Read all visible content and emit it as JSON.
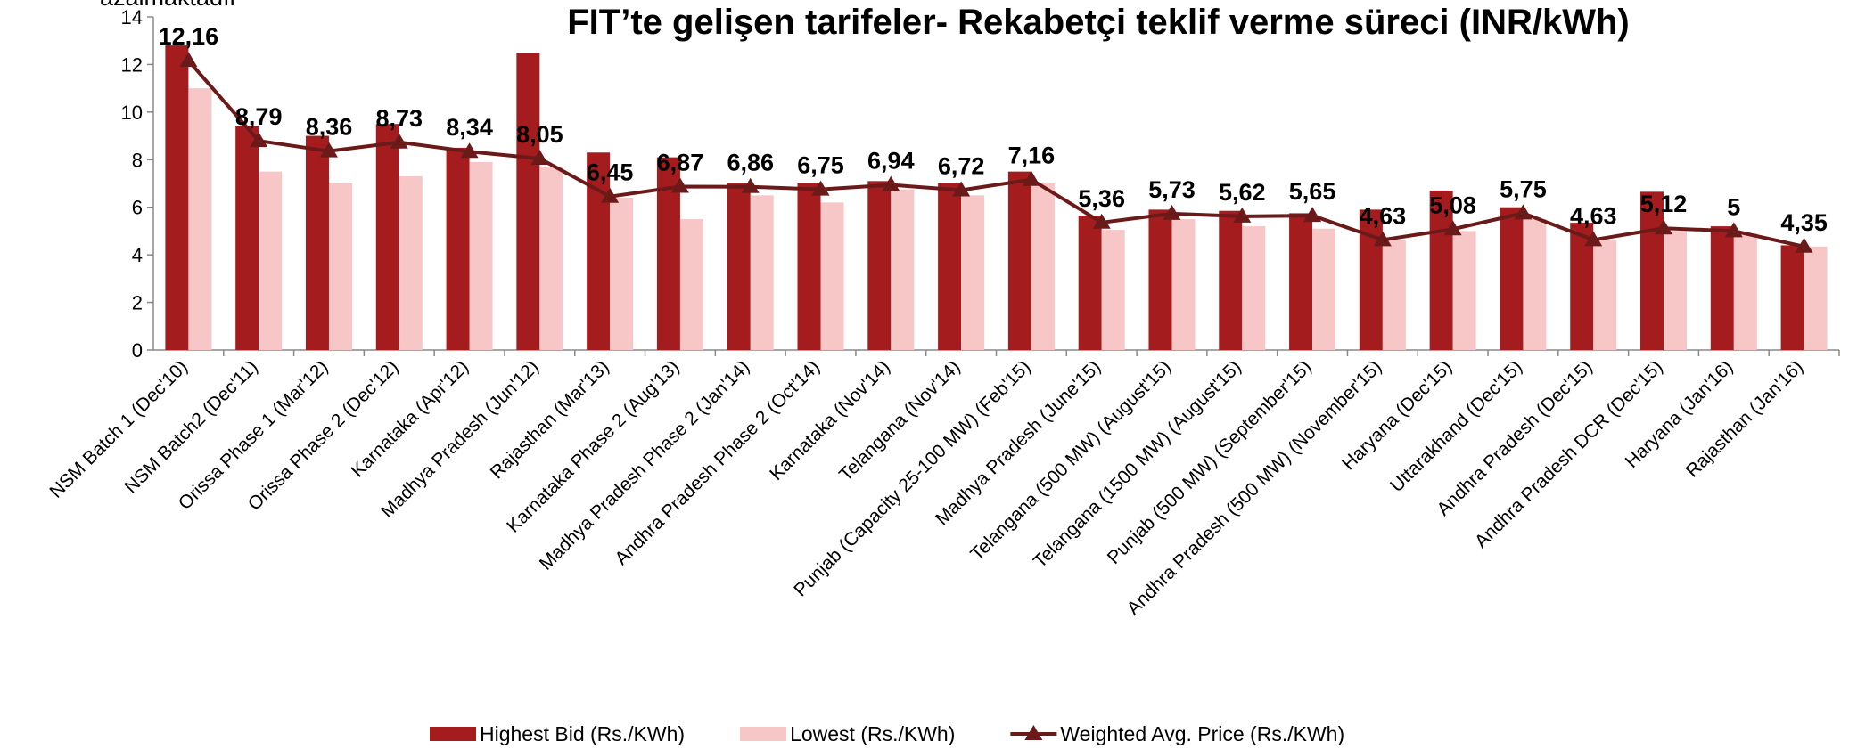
{
  "chart_data": {
    "type": "bar",
    "title": "FIT’te gelişen tarifeler- Rekabetçi teklif verme süreci (INR/kWh)",
    "annotation": "azalmaktadır",
    "categories": [
      "NSM Batch 1 (Dec'10)",
      "NSM Batch2 (Dec'11)",
      "Orissa Phase 1 (Mar'12)",
      "Orissa Phase 2 (Dec'12)",
      "Karnataka (Apr'12)",
      "Madhya Pradesh (Jun'12)",
      "Rajasthan (Mar'13)",
      "Karnataka Phase 2 (Aug'13)",
      "Madhya Pradesh Phase 2 (Jan'14)",
      "Andhra Pradesh Phase 2 (Oct'14)",
      "Karnataka (Nov'14)",
      "Telangana (Nov'14)",
      "Punjab (Capacity 25-100 MW) (Feb'15)",
      "Madhya Pradesh (June'15)",
      "Telangana (500 MW) (August'15)",
      "Telangana (1500 MW) (August'15)",
      "Punjab (500 MW) (September'15)",
      "Andhra Pradesh (500 MW) (November'15)",
      "Haryana (Dec'15)",
      "Uttarakhand (Dec'15)",
      "Andhra Pradesh (Dec'15)",
      "Andhra Pradesh DCR (Dec'15)",
      "Haryana (Jan'16)",
      "Rajasthan (Jan'16)"
    ],
    "series": [
      {
        "name": "Highest Bid (Rs./KWh)",
        "type": "bar",
        "color": "#a51c1f",
        "values": [
          12.8,
          9.4,
          9.0,
          9.5,
          8.5,
          12.5,
          8.3,
          8.1,
          7.0,
          7.0,
          7.1,
          7.0,
          7.5,
          5.65,
          5.9,
          5.85,
          5.75,
          5.9,
          6.7,
          6.0,
          5.35,
          6.65,
          5.2,
          4.4
        ]
      },
      {
        "name": "Lowest (Rs./KWh)",
        "type": "bar",
        "color": "#f7c6c7",
        "values": [
          11.0,
          7.5,
          7.0,
          7.3,
          7.9,
          7.7,
          6.4,
          5.5,
          6.5,
          6.2,
          6.75,
          6.5,
          7.0,
          5.05,
          5.5,
          5.2,
          5.1,
          4.63,
          5.0,
          5.5,
          4.63,
          5.0,
          4.9,
          4.35
        ]
      },
      {
        "name": "Weighted Avg. Price (Rs./KWh)",
        "type": "line",
        "color": "#6b1a1a",
        "values": [
          12.16,
          8.79,
          8.36,
          8.73,
          8.34,
          8.05,
          6.45,
          6.87,
          6.86,
          6.75,
          6.94,
          6.72,
          7.16,
          5.36,
          5.73,
          5.62,
          5.65,
          4.63,
          5.08,
          5.75,
          4.63,
          5.12,
          5,
          4.35
        ],
        "value_labels": [
          "12,16",
          "8,79",
          "8,36",
          "8,73",
          "8,34",
          "8,05",
          "6,45",
          "6,87",
          "6,86",
          "6,75",
          "6,94",
          "6,72",
          "7,16",
          "5,36",
          "5,73",
          "5,62",
          "5,65",
          "4,63",
          "5,08",
          "5,75",
          "4,63",
          "5,12",
          "5",
          "4,35"
        ]
      }
    ],
    "ylim": [
      0,
      14
    ],
    "yticks": [
      0,
      2,
      4,
      6,
      8,
      10,
      12,
      14
    ],
    "grid": false,
    "legend": "bottom"
  }
}
